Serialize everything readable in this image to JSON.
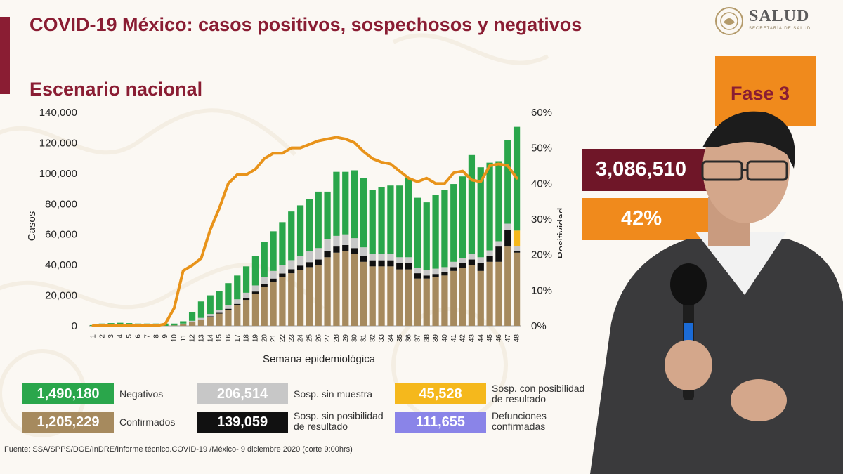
{
  "title": "COVID-19 México: casos positivos, sospechosos y negativos",
  "subtitle": "Escenario nacional",
  "logo": {
    "name": "SALUD",
    "subtext": "SECRETARÍA DE SALUD"
  },
  "phase_label": "Fase 3",
  "total_value": "3,086,510",
  "positivity_value": "42%",
  "legend": [
    {
      "value": "1,490,180",
      "label": "Negativos",
      "color": "#2aa64b"
    },
    {
      "value": "206,514",
      "label": "Sosp. sin muestra",
      "color": "#c7c7c7"
    },
    {
      "value": "45,528",
      "label": "Sosp. con posibilidad de resultado",
      "color": "#f5b81c"
    },
    {
      "value": "1,205,229",
      "label": "Confirmados",
      "color": "#a68a5e"
    },
    {
      "value": "139,059",
      "label": "Sosp. sin posibilidad de resultado",
      "color": "#111111"
    },
    {
      "value": "111,655",
      "label": "Defunciones confirmadas",
      "color": "#8a84e8"
    }
  ],
  "source": "Fuente: SSA/SPPS/DGE/InDRE/Informe técnico.COVID-19 /México- 9 diciembre 2020 (corte 9:00hrs)",
  "chart_data": {
    "type": "bar",
    "xlabel": "Semana epidemiológica",
    "ylabel": "Casos",
    "y2label": "Positividad",
    "ylim": [
      0,
      140000
    ],
    "y2lim": [
      0,
      60
    ],
    "yticks": [
      "0",
      "20,000",
      "40,000",
      "60,000",
      "80,000",
      "100,000",
      "120,000",
      "140,000"
    ],
    "y2ticks": [
      "0%",
      "10%",
      "20%",
      "30%",
      "40%",
      "50%",
      "60%"
    ],
    "categories": [
      "1",
      "2",
      "3",
      "4",
      "5",
      "6",
      "7",
      "8",
      "9",
      "10",
      "11",
      "12",
      "13",
      "14",
      "15",
      "16",
      "17",
      "18",
      "19",
      "20",
      "21",
      "22",
      "23",
      "24",
      "25",
      "26",
      "27",
      "28",
      "29",
      "30",
      "31",
      "32",
      "33",
      "34",
      "35",
      "36",
      "37",
      "38",
      "39",
      "40",
      "41",
      "42",
      "43",
      "44",
      "45",
      "46",
      "47",
      "48"
    ],
    "series": [
      {
        "name": "Confirmados",
        "color": "#a68a5e",
        "values": [
          0,
          0,
          0,
          0,
          0,
          0,
          0,
          0,
          0,
          300,
          1200,
          2500,
          4000,
          6000,
          8000,
          10500,
          13500,
          17000,
          21000,
          25500,
          29000,
          32000,
          34500,
          36500,
          38500,
          40000,
          45000,
          48000,
          49000,
          47000,
          42000,
          39000,
          39000,
          39000,
          37000,
          37000,
          31000,
          31000,
          32000,
          33000,
          36000,
          38000,
          40000,
          36000,
          42000,
          42000,
          52000,
          48000
        ]
      },
      {
        "name": "Sosp. sin posibilidad de resultado",
        "color": "#111111",
        "values": [
          0,
          0,
          0,
          0,
          0,
          0,
          0,
          0,
          0,
          0,
          0,
          100,
          200,
          300,
          500,
          700,
          900,
          1200,
          1500,
          1800,
          2000,
          2300,
          2600,
          3000,
          3300,
          3500,
          4000,
          4000,
          4000,
          4000,
          4000,
          4000,
          4000,
          4000,
          4000,
          4000,
          3500,
          2000,
          2000,
          2000,
          2500,
          3000,
          3500,
          5500,
          4000,
          10000,
          11000,
          1000
        ]
      },
      {
        "name": "Sosp. sin muestra",
        "color": "#c7c7c7",
        "values": [
          0,
          0,
          0,
          0,
          0,
          0,
          0,
          0,
          0,
          0,
          300,
          700,
          1000,
          1500,
          2000,
          2500,
          3000,
          3500,
          4000,
          4500,
          5000,
          5500,
          6000,
          6500,
          7000,
          7500,
          8000,
          7000,
          7000,
          6500,
          5500,
          4000,
          4000,
          4000,
          4000,
          4000,
          3500,
          3500,
          3500,
          3500,
          3500,
          3500,
          3500,
          3500,
          3500,
          3500,
          4000,
          3500
        ]
      },
      {
        "name": "Sosp. con posibilidad de resultado",
        "color": "#f5b81c",
        "values": [
          0,
          0,
          0,
          0,
          0,
          0,
          0,
          0,
          0,
          0,
          0,
          0,
          0,
          0,
          0,
          0,
          0,
          0,
          0,
          0,
          0,
          0,
          0,
          0,
          0,
          0,
          0,
          0,
          0,
          0,
          0,
          0,
          0,
          0,
          0,
          0,
          0,
          0,
          0,
          0,
          0,
          0,
          0,
          0,
          0,
          0,
          0,
          10000
        ]
      },
      {
        "name": "Negativos",
        "color": "#2aa64b",
        "values": [
          500,
          1500,
          1800,
          2000,
          1800,
          1500,
          1500,
          1500,
          1500,
          1200,
          1500,
          5700,
          10800,
          12200,
          12500,
          14300,
          15600,
          17300,
          19500,
          23200,
          26000,
          28200,
          31900,
          33000,
          34200,
          37000,
          31000,
          42000,
          41000,
          44500,
          45500,
          42000,
          44000,
          45000,
          47000,
          52000,
          46000,
          44500,
          48500,
          50500,
          51000,
          53500,
          65000,
          59000,
          57500,
          52500,
          55000,
          68000
        ]
      }
    ],
    "line": {
      "name": "Positividad",
      "color": "#e8931a",
      "values": [
        0,
        0,
        0,
        0,
        0,
        0,
        0,
        0,
        0.5,
        5,
        15.5,
        17,
        19,
        27,
        33,
        40,
        42.5,
        42.5,
        44,
        47,
        48.5,
        48.5,
        50,
        50,
        51,
        52,
        52.5,
        53,
        52.5,
        51.5,
        49,
        47,
        46,
        45.5,
        43.5,
        41.5,
        40.5,
        41.5,
        40,
        40,
        43,
        43.5,
        41,
        40.5,
        45,
        45.5,
        45,
        41.5
      ]
    }
  }
}
